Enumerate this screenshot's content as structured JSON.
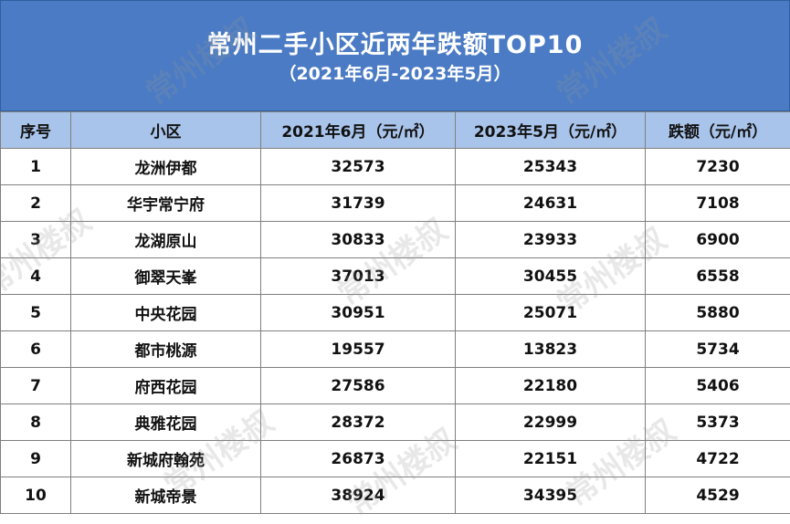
{
  "header": {
    "title": "常州二手小区近两年跌额TOP10",
    "subtitle": "（2021年6月-2023年5月）"
  },
  "table": {
    "columns": [
      "序号",
      "小区",
      "2021年6月（元/㎡）",
      "2023年5月（元/㎡）",
      "跌额（元/㎡）"
    ],
    "rows": [
      [
        "1",
        "龙洲伊都",
        "32573",
        "25343",
        "7230"
      ],
      [
        "2",
        "华宇常宁府",
        "31739",
        "24631",
        "7108"
      ],
      [
        "3",
        "龙湖原山",
        "30833",
        "23933",
        "6900"
      ],
      [
        "4",
        "御翠天峯",
        "37013",
        "30455",
        "6558"
      ],
      [
        "5",
        "中央花园",
        "30951",
        "25071",
        "5880"
      ],
      [
        "6",
        "都市桃源",
        "19557",
        "13823",
        "5734"
      ],
      [
        "7",
        "府西花园",
        "27586",
        "22180",
        "5406"
      ],
      [
        "8",
        "典雅花园",
        "28372",
        "22999",
        "5373"
      ],
      [
        "9",
        "新城府翰苑",
        "26873",
        "22151",
        "4722"
      ],
      [
        "10",
        "新城帝景",
        "38924",
        "34395",
        "4529"
      ]
    ]
  },
  "watermark": "常州楼叔",
  "colors": {
    "banner": "#4a7bc4",
    "header_row": "#a9c4ea"
  }
}
